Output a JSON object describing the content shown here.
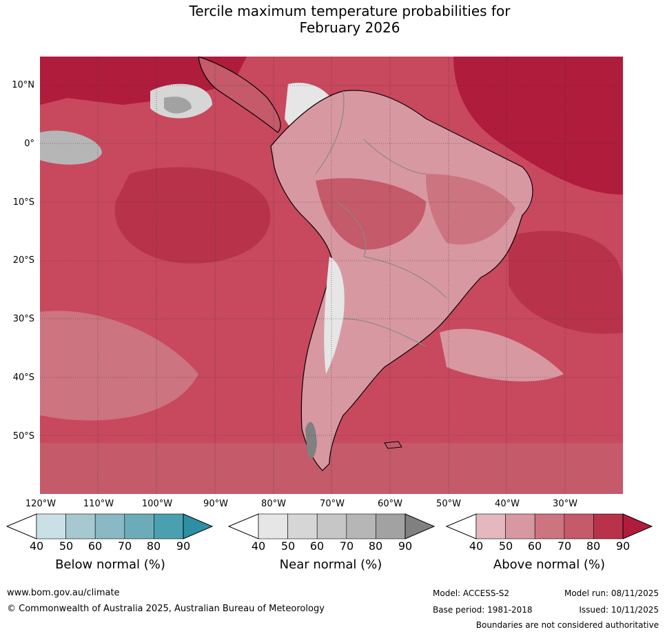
{
  "title": {
    "line1": "Tercile maximum temperature probabilities for",
    "line2": "February 2026"
  },
  "map": {
    "lat_labels": [
      "10°N",
      "0°",
      "10°S",
      "20°S",
      "30°S",
      "40°S",
      "50°S"
    ],
    "lon_labels": [
      "120°W",
      "110°W",
      "100°W",
      "90°W",
      "80°W",
      "70°W",
      "60°W",
      "50°W",
      "40°W",
      "30°W"
    ]
  },
  "legends": {
    "below": {
      "title": "Below normal (%)",
      "ticks": [
        "40",
        "50",
        "60",
        "70",
        "80",
        "90"
      ],
      "colors": [
        "#c8e0e6",
        "#a6c8d0",
        "#8ab8c4",
        "#6cacb8",
        "#4aa0b0",
        "#2e8fa4"
      ]
    },
    "near": {
      "title": "Near normal (%)",
      "ticks": [
        "40",
        "50",
        "60",
        "70",
        "80",
        "90"
      ],
      "colors": [
        "#e6e6e6",
        "#d6d6d6",
        "#c6c6c6",
        "#b6b6b6",
        "#a2a2a2",
        "#808080"
      ]
    },
    "above": {
      "title": "Above normal (%)",
      "ticks": [
        "40",
        "50",
        "60",
        "70",
        "80",
        "90"
      ],
      "colors": [
        "#e4b8be",
        "#d898a2",
        "#cc7480",
        "#c45a6a",
        "#b8334a",
        "#b01c3c"
      ]
    }
  },
  "footer": {
    "website": "www.bom.gov.au/climate",
    "copyright": "© Commonwealth of Australia 2025, Australian Bureau of Meteorology",
    "model": "Model: ACCESS-S2",
    "base_period": "Base period: 1981-2018",
    "model_run": "Model run: 08/11/2025",
    "issued": "Issued: 10/11/2025",
    "disclaimer": "Boundaries are not considered authoritative"
  }
}
